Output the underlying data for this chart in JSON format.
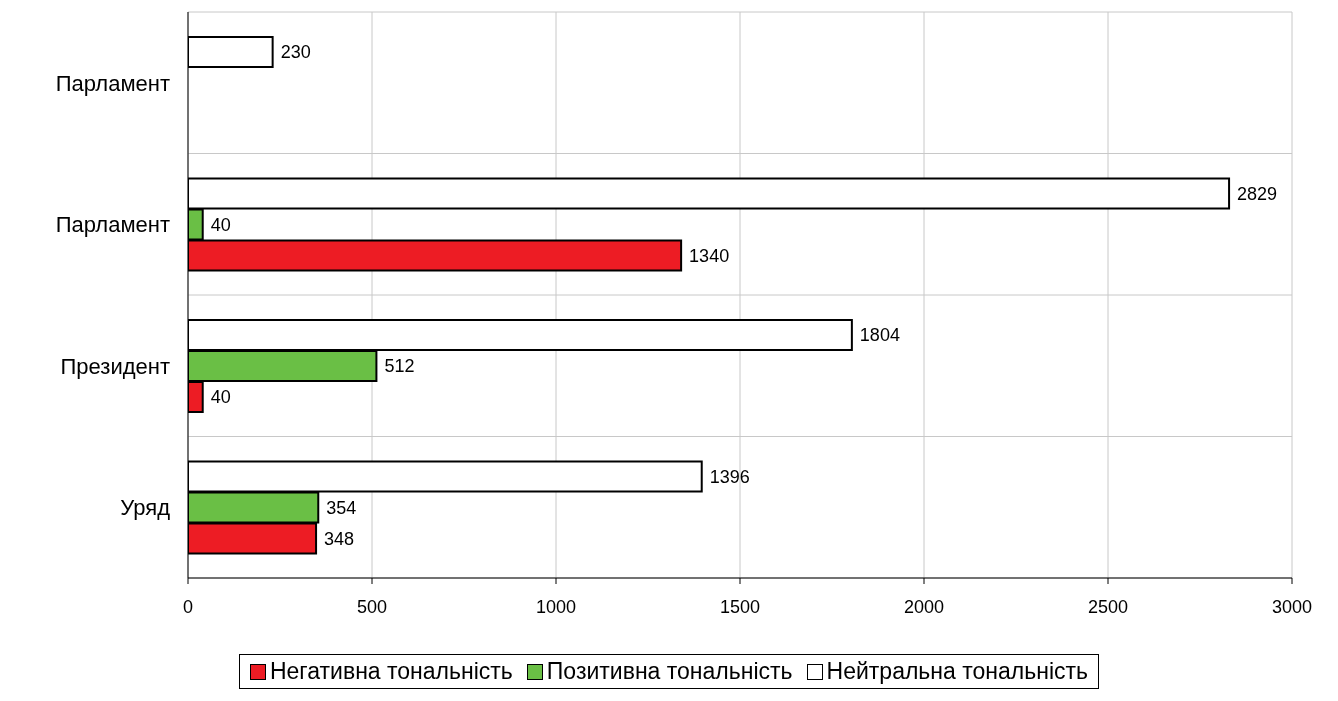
{
  "chart_data": {
    "type": "bar",
    "orientation": "horizontal",
    "categories": [
      "Парламент",
      "Парламент",
      "Президент",
      "Уряд"
    ],
    "series": [
      {
        "name": "Негативна тональність",
        "color": "#ed1c24",
        "values": [
          null,
          1340,
          40,
          348
        ]
      },
      {
        "name": "Позитивна тональність",
        "color": "#6abf45",
        "values": [
          null,
          40,
          512,
          354
        ]
      },
      {
        "name": "Нейтральна тональність",
        "color": "#ffffff",
        "values": [
          230,
          2829,
          1804,
          1396
        ]
      }
    ],
    "xlim": [
      0,
      3000
    ],
    "xticks": [
      0,
      500,
      1000,
      1500,
      2000,
      2500,
      3000
    ],
    "grid": true,
    "legend": "bottom",
    "data_labels": true
  }
}
